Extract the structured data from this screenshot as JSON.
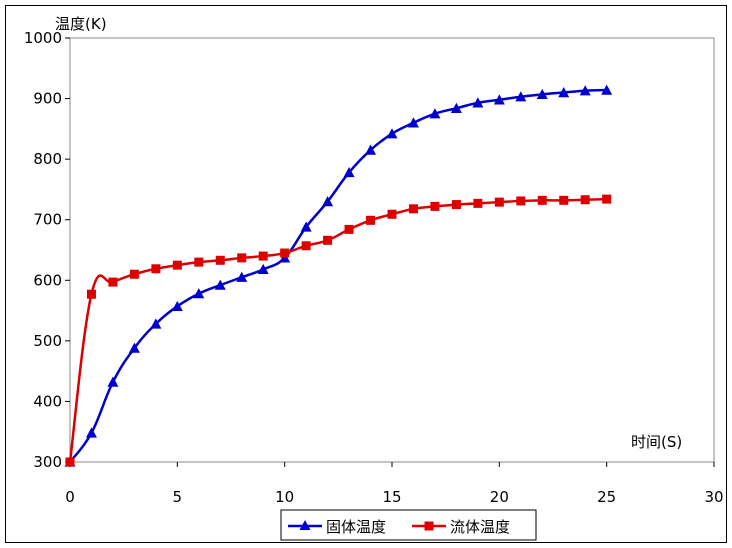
{
  "chart_data": {
    "type": "line",
    "ylabel": "温度(K)",
    "xlabel": "时间(S)",
    "xlim": [
      0,
      30
    ],
    "ylim": [
      300,
      1000
    ],
    "xticks": [
      0,
      5,
      10,
      15,
      20,
      25,
      30
    ],
    "yticks": [
      300,
      400,
      500,
      600,
      700,
      800,
      900,
      1000
    ],
    "grid": false,
    "legend_position": "bottom-center",
    "x": [
      0,
      1,
      2,
      3,
      4,
      5,
      6,
      7,
      8,
      9,
      10,
      11,
      12,
      13,
      14,
      15,
      16,
      17,
      18,
      19,
      20,
      21,
      22,
      23,
      24,
      25
    ],
    "series": [
      {
        "name": "固体温度",
        "color": "#0000cc",
        "marker": "triangle",
        "values": [
          300,
          348,
          432,
          488,
          528,
          557,
          578,
          592,
          605,
          618,
          637,
          688,
          730,
          778,
          815,
          842,
          860,
          875,
          884,
          893,
          898,
          903,
          907,
          910,
          913,
          914
        ]
      },
      {
        "name": "流体温度",
        "color": "#dd0000",
        "marker": "square",
        "values": [
          300,
          577,
          597,
          610,
          619,
          625,
          630,
          633,
          637,
          640,
          645,
          657,
          666,
          684,
          699,
          709,
          718,
          722,
          725,
          727,
          729,
          731,
          732,
          732,
          733,
          734
        ]
      }
    ]
  }
}
